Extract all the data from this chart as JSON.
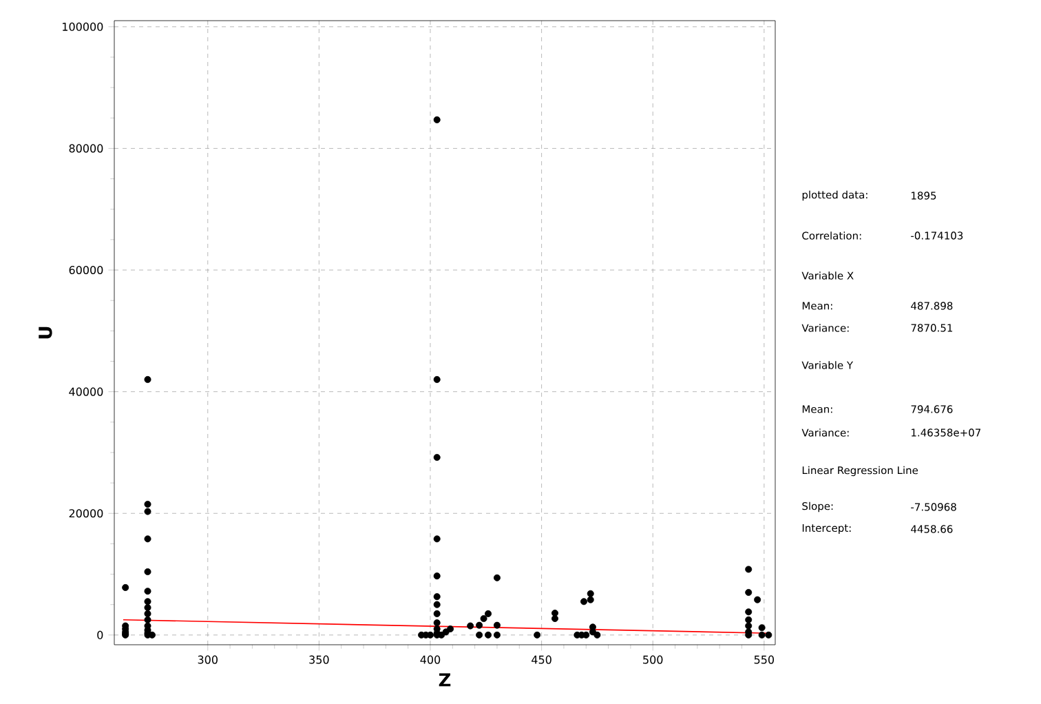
{
  "chart_data": {
    "type": "scatter",
    "xlabel": "Z",
    "ylabel": "U",
    "xlim": [
      258,
      555
    ],
    "ylim": [
      -1600,
      101000
    ],
    "xticks": [
      300,
      350,
      400,
      450,
      500,
      550
    ],
    "yticks": [
      0,
      20000,
      40000,
      60000,
      80000,
      100000
    ],
    "grid": true,
    "series": [
      {
        "marker": "circle",
        "color": "#000000",
        "x": [
          263,
          263,
          263,
          263,
          263,
          263,
          273,
          273,
          273,
          273,
          273,
          273,
          273,
          273,
          273,
          273,
          273,
          273,
          273,
          273,
          275,
          396,
          398,
          400,
          403,
          403,
          403,
          403,
          403,
          403,
          403,
          403,
          403,
          403,
          403,
          403,
          405,
          407,
          409,
          418,
          422,
          422,
          424,
          426,
          426,
          430,
          430,
          430,
          448,
          456,
          456,
          466,
          468,
          469,
          470,
          472,
          472,
          473,
          473,
          475,
          543,
          543,
          543,
          543,
          543,
          543,
          543,
          547,
          549,
          549,
          552
        ],
        "values": [
          7800,
          1500,
          1000,
          500,
          200,
          0,
          42000,
          21500,
          20300,
          15800,
          10400,
          7200,
          5500,
          4500,
          3500,
          2500,
          1500,
          800,
          300,
          0,
          0,
          0,
          0,
          0,
          84700,
          42000,
          29200,
          15800,
          9700,
          6300,
          5000,
          3500,
          2000,
          1000,
          300,
          0,
          0,
          500,
          1000,
          1500,
          1600,
          0,
          2700,
          3500,
          0,
          9400,
          1600,
          0,
          0,
          3600,
          2700,
          0,
          0,
          5500,
          0,
          6800,
          5800,
          1300,
          500,
          0,
          10800,
          7000,
          3800,
          2500,
          1500,
          500,
          0,
          5800,
          1200,
          0,
          0
        ]
      },
      {
        "type": "line",
        "marker": "none",
        "color": "#ff0000",
        "x": [
          262,
          552
        ],
        "values": [
          2500,
          300
        ]
      }
    ],
    "annotations": [
      "plotted data:",
      "1895",
      "Correlation:",
      "-0.174103",
      "Variable X",
      "Mean:",
      "487.898",
      "Variance:",
      "7870.51",
      "Variable Y",
      "Mean:",
      "794.676",
      "Variance:",
      "1.46358e+07",
      "Linear Regression Line",
      "Slope:",
      "-7.50968",
      "Intercept:",
      "4458.66"
    ]
  }
}
